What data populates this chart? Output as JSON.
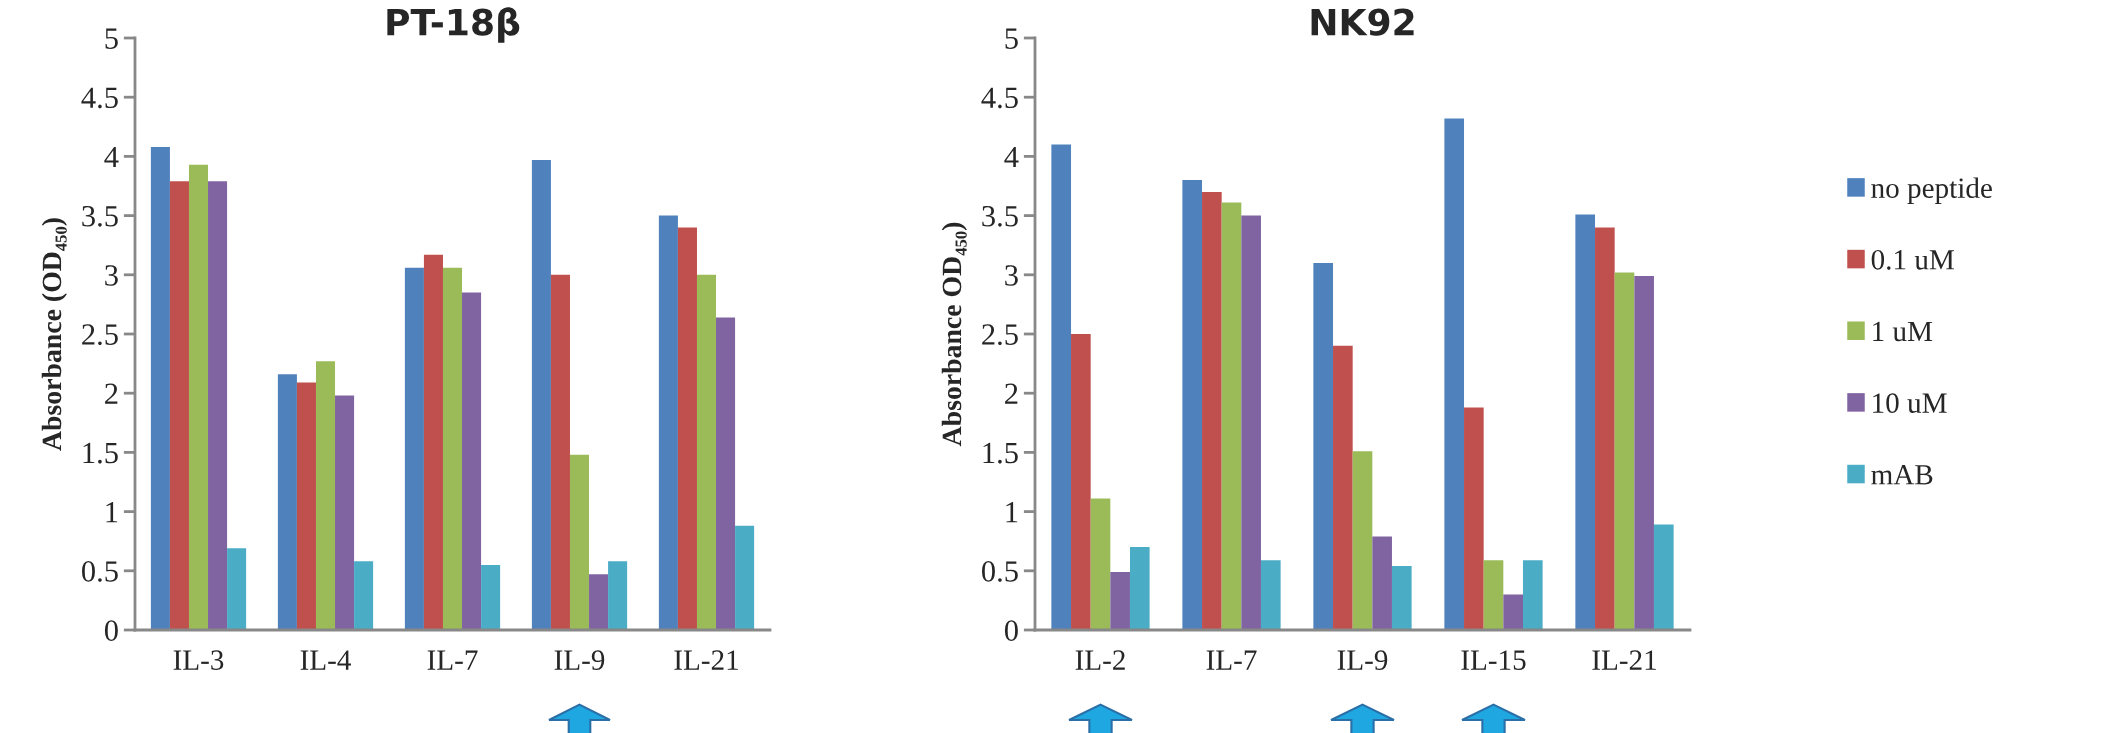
{
  "chart_data": [
    {
      "type": "bar",
      "title": "PT-18β",
      "ylabel": "Absorbance (OD₄₅₀)",
      "categories": [
        "IL-3",
        "IL-4",
        "IL-7",
        "IL-9",
        "IL-21"
      ],
      "ylim": [
        0,
        5
      ],
      "yticks": [
        0,
        0.5,
        1,
        1.5,
        2,
        2.5,
        3,
        3.5,
        4,
        4.5,
        5
      ],
      "grid": false,
      "legend": false,
      "series": [
        {
          "color": "#4f81bd",
          "values": [
            4.08,
            2.16,
            3.06,
            3.97,
            3.5
          ]
        },
        {
          "color": "#c0504d",
          "values": [
            3.79,
            2.09,
            3.17,
            3.0,
            3.4
          ]
        },
        {
          "color": "#9bbb59",
          "values": [
            3.93,
            2.27,
            3.06,
            1.48,
            3.0
          ]
        },
        {
          "color": "#8064a2",
          "values": [
            3.79,
            1.98,
            2.85,
            0.47,
            2.64
          ]
        },
        {
          "color": "#4bacc6",
          "values": [
            0.69,
            0.58,
            0.55,
            0.58,
            0.88
          ]
        }
      ]
    },
    {
      "type": "bar",
      "title": "NK92",
      "ylabel": "Absorbance OD₄₅₀)",
      "categories": [
        "IL-2",
        "IL-7",
        "IL-9",
        "IL-15",
        "IL-21"
      ],
      "ylim": [
        0,
        5
      ],
      "yticks": [
        0,
        0.5,
        1,
        1.5,
        2,
        2.5,
        3,
        3.5,
        4,
        4.5,
        5
      ],
      "grid": false,
      "legend": "right",
      "series": [
        {
          "name": "no peptide",
          "color": "#4f81bd",
          "values": [
            4.1,
            3.8,
            3.1,
            4.32,
            3.51
          ]
        },
        {
          "name": "0.1 uM",
          "color": "#c0504d",
          "values": [
            2.5,
            3.7,
            2.4,
            1.88,
            3.4
          ]
        },
        {
          "name": "1 uM",
          "color": "#9bbb59",
          "values": [
            1.11,
            3.61,
            1.51,
            0.59,
            3.02
          ]
        },
        {
          "name": "10 uM",
          "color": "#8064a2",
          "values": [
            0.49,
            3.5,
            0.79,
            0.3,
            2.99
          ]
        },
        {
          "name": "mAB",
          "color": "#4bacc6",
          "values": [
            0.7,
            0.59,
            0.54,
            0.59,
            0.89
          ]
        }
      ]
    }
  ]
}
